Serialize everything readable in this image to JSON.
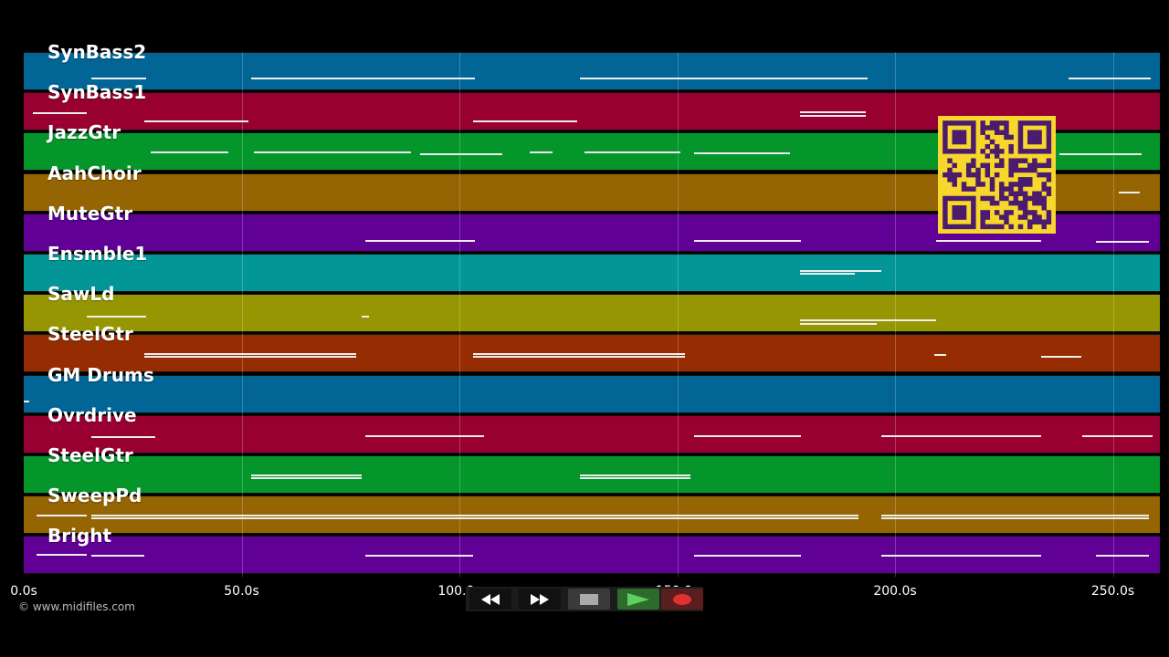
{
  "tracks": [
    {
      "name": "SynBass2",
      "color": "#016595"
    },
    {
      "name": "SynBass1",
      "color": "#970031"
    },
    {
      "name": "JazzGtr",
      "color": "#04962b"
    },
    {
      "name": "AahChoir",
      "color": "#956403"
    },
    {
      "name": "MuteGtr",
      "color": "#600095"
    },
    {
      "name": "Ensmble1",
      "color": "#029696"
    },
    {
      "name": "SawLd",
      "color": "#969603"
    },
    {
      "name": "SteelGtr",
      "color": "#962d02"
    },
    {
      "name": "GM Drums",
      "color": "#016595"
    },
    {
      "name": "Ovrdrive",
      "color": "#970031"
    },
    {
      "name": "SteelGtr",
      "color": "#04962b"
    },
    {
      "name": "SweepPd",
      "color": "#956403"
    },
    {
      "name": "Bright",
      "color": "#600095"
    }
  ],
  "time_axis": {
    "ticks": [
      "0.0s",
      "50.0s",
      "100.0s",
      "150.0s",
      "200.0s",
      "250.0s"
    ]
  },
  "copyright": "© www.midifiles.com",
  "transport": {
    "buttons": [
      {
        "icon": "rewind-icon"
      },
      {
        "icon": "fast-forward-icon"
      },
      {
        "icon": "stop-icon"
      },
      {
        "icon": "play-icon"
      },
      {
        "icon": "record-icon"
      }
    ]
  },
  "qr_code": {
    "color": "#f7d72b",
    "dark": "#4b1b6e"
  }
}
